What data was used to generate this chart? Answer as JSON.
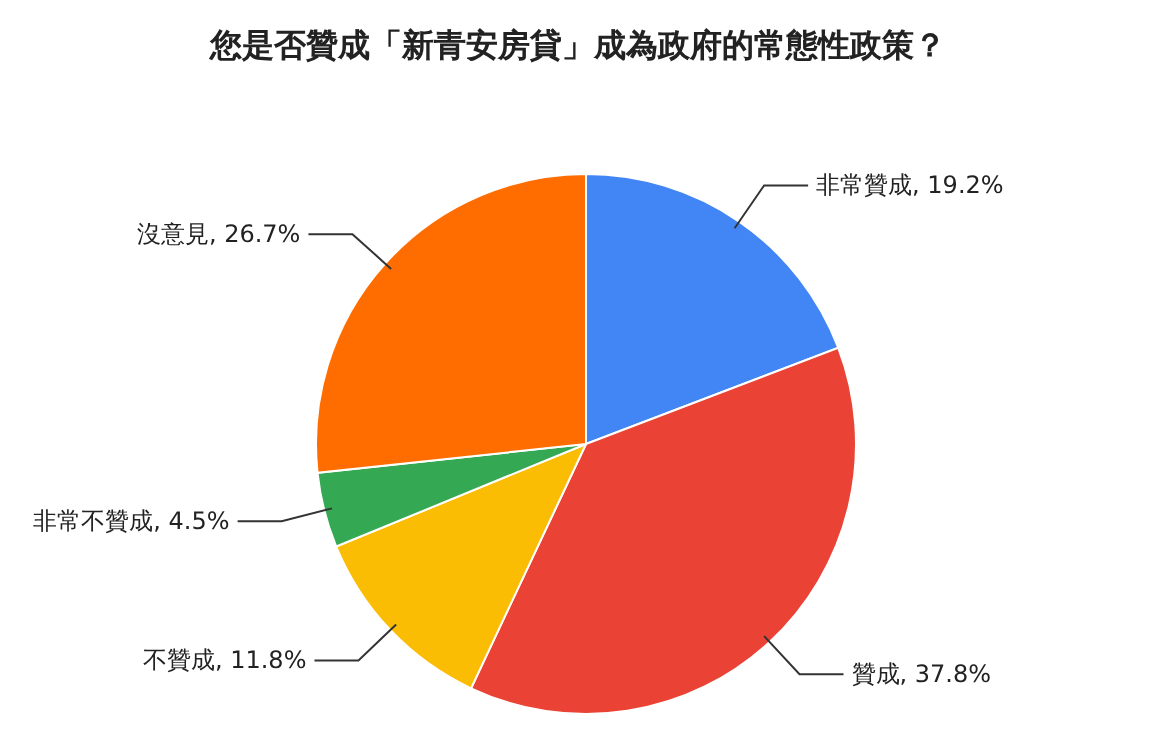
{
  "chart_data": {
    "type": "pie",
    "title": "您是否贊成「新青安房貸」成為政府的常態性政策？",
    "categories": [
      "非常贊成",
      "贊成",
      "不贊成",
      "非常不贊成",
      "沒意見"
    ],
    "values": [
      19.2,
      37.8,
      11.8,
      4.5,
      26.7
    ],
    "value_labels": [
      "19.2%",
      "37.8%",
      "11.8%",
      "4.5%",
      "26.7%"
    ],
    "colors": [
      "#4285f4",
      "#ea4335",
      "#fbbc04",
      "#34a853",
      "#ff6d01"
    ]
  }
}
